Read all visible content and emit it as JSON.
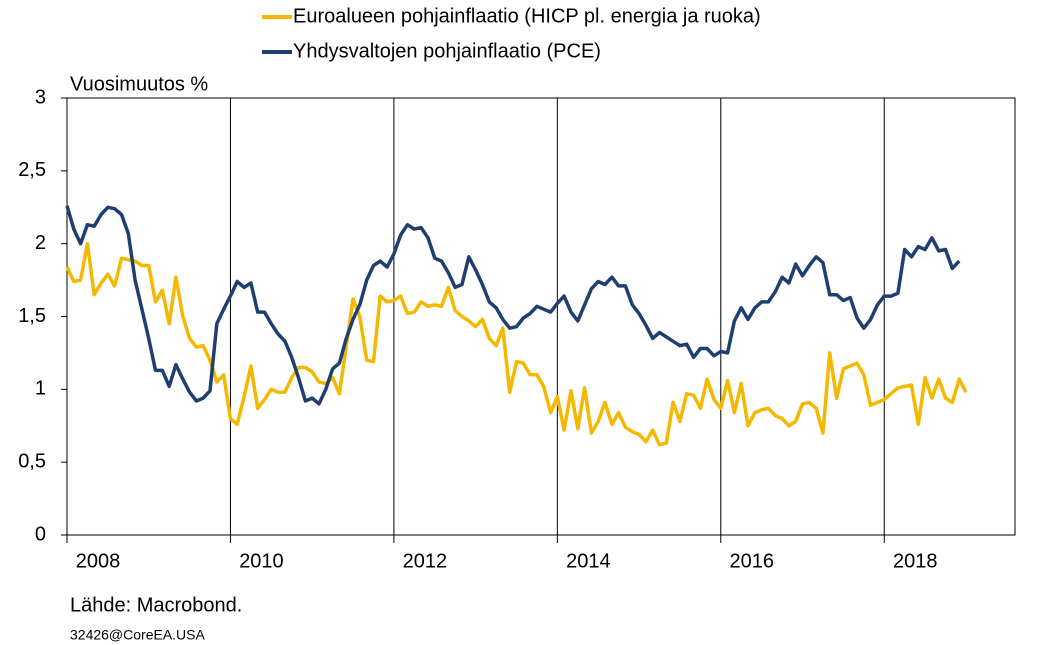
{
  "chart_data": {
    "type": "line",
    "y_label": "Vuosimuutos  %",
    "source": "Lähde:  Macrobond.",
    "footnote": "32426@CoreEA.USA",
    "x": [
      2008,
      2008.083,
      2008.167,
      2008.25,
      2008.333,
      2008.417,
      2008.5,
      2008.583,
      2008.667,
      2008.75,
      2008.833,
      2008.917,
      2009,
      2009.083,
      2009.167,
      2009.25,
      2009.333,
      2009.417,
      2009.5,
      2009.583,
      2009.667,
      2009.75,
      2009.833,
      2009.917,
      2010,
      2010.083,
      2010.167,
      2010.25,
      2010.333,
      2010.417,
      2010.5,
      2010.583,
      2010.667,
      2010.75,
      2010.833,
      2010.917,
      2011,
      2011.083,
      2011.167,
      2011.25,
      2011.333,
      2011.417,
      2011.5,
      2011.583,
      2011.667,
      2011.75,
      2011.833,
      2011.917,
      2012,
      2012.083,
      2012.167,
      2012.25,
      2012.333,
      2012.417,
      2012.5,
      2012.583,
      2012.667,
      2012.75,
      2012.833,
      2012.917,
      2013,
      2013.083,
      2013.167,
      2013.25,
      2013.333,
      2013.417,
      2013.5,
      2013.583,
      2013.667,
      2013.75,
      2013.833,
      2013.917,
      2014,
      2014.083,
      2014.167,
      2014.25,
      2014.333,
      2014.417,
      2014.5,
      2014.583,
      2014.667,
      2014.75,
      2014.833,
      2014.917,
      2015,
      2015.083,
      2015.167,
      2015.25,
      2015.333,
      2015.417,
      2015.5,
      2015.583,
      2015.667,
      2015.75,
      2015.833,
      2015.917,
      2016,
      2016.083,
      2016.167,
      2016.25,
      2016.333,
      2016.417,
      2016.5,
      2016.583,
      2016.667,
      2016.75,
      2016.833,
      2016.917,
      2017,
      2017.083,
      2017.167,
      2017.25,
      2017.333,
      2017.417,
      2017.5,
      2017.583,
      2017.667,
      2017.75,
      2017.833,
      2017.917,
      2018,
      2018.083,
      2018.167,
      2018.25,
      2018.333,
      2018.417,
      2018.5,
      2018.583,
      2018.667,
      2018.75,
      2018.833,
      2018.917,
      2019
    ],
    "series": [
      {
        "name": "Euroalueen pohjainflaatio (HICP pl. energia ja ruoka)",
        "color": "#f5b800",
        "values": [
          1.84,
          1.74,
          1.75,
          2.0,
          1.65,
          1.73,
          1.79,
          1.71,
          1.9,
          1.89,
          1.88,
          1.85,
          1.85,
          1.6,
          1.68,
          1.45,
          1.77,
          1.5,
          1.35,
          1.29,
          1.3,
          1.2,
          1.05,
          1.1,
          0.8,
          0.76,
          0.95,
          1.16,
          0.87,
          0.93,
          1.0,
          0.98,
          0.98,
          1.08,
          1.15,
          1.15,
          1.12,
          1.05,
          1.04,
          1.08,
          0.97,
          1.3,
          1.62,
          1.5,
          1.2,
          1.19,
          1.64,
          1.6,
          1.61,
          1.64,
          1.52,
          1.53,
          1.6,
          1.57,
          1.58,
          1.57,
          1.7,
          1.54,
          1.5,
          1.47,
          1.43,
          1.48,
          1.35,
          1.3,
          1.42,
          0.98,
          1.19,
          1.18,
          1.1,
          1.1,
          1.02,
          0.84,
          0.95,
          0.72,
          0.99,
          0.73,
          1.01,
          0.7,
          0.78,
          0.91,
          0.76,
          0.84,
          0.74,
          0.71,
          0.69,
          0.64,
          0.72,
          0.62,
          0.63,
          0.91,
          0.78,
          0.97,
          0.96,
          0.87,
          1.07,
          0.93,
          0.87,
          1.06,
          0.84,
          1.04,
          0.75,
          0.84,
          0.86,
          0.87,
          0.82,
          0.8,
          0.75,
          0.78,
          0.9,
          0.91,
          0.87,
          0.7,
          1.25,
          0.94,
          1.14,
          1.16,
          1.18,
          1.1,
          0.89,
          0.91,
          0.93,
          0.97,
          1.01,
          1.02,
          1.03,
          0.76,
          1.08,
          0.94,
          1.07,
          0.94,
          0.91,
          1.07,
          0.98
        ]
      },
      {
        "name": "Yhdysvaltojen pohjainflaatio (PCE)",
        "color": "#1f3f73",
        "values": [
          2.26,
          2.1,
          2.0,
          2.13,
          2.12,
          2.2,
          2.25,
          2.24,
          2.2,
          2.07,
          1.75,
          1.55,
          1.35,
          1.13,
          1.13,
          1.02,
          1.17,
          1.07,
          0.98,
          0.92,
          0.94,
          0.99,
          1.45,
          1.55,
          1.64,
          1.74,
          1.7,
          1.73,
          1.53,
          1.53,
          1.45,
          1.38,
          1.33,
          1.22,
          1.08,
          0.92,
          0.94,
          0.9,
          1.0,
          1.14,
          1.18,
          1.35,
          1.48,
          1.58,
          1.75,
          1.85,
          1.88,
          1.84,
          1.93,
          2.06,
          2.13,
          2.1,
          2.11,
          2.04,
          1.9,
          1.88,
          1.8,
          1.7,
          1.72,
          1.91,
          1.82,
          1.72,
          1.6,
          1.56,
          1.48,
          1.42,
          1.43,
          1.49,
          1.52,
          1.57,
          1.55,
          1.53,
          1.59,
          1.64,
          1.53,
          1.47,
          1.58,
          1.69,
          1.74,
          1.72,
          1.77,
          1.71,
          1.71,
          1.58,
          1.52,
          1.44,
          1.35,
          1.39,
          1.36,
          1.33,
          1.3,
          1.31,
          1.22,
          1.28,
          1.28,
          1.23,
          1.26,
          1.25,
          1.47,
          1.56,
          1.48,
          1.56,
          1.6,
          1.6,
          1.67,
          1.77,
          1.73,
          1.86,
          1.78,
          1.85,
          1.91,
          1.87,
          1.65,
          1.65,
          1.61,
          1.63,
          1.49,
          1.42,
          1.48,
          1.58,
          1.64,
          1.64,
          1.66,
          1.96,
          1.91,
          1.98,
          1.96,
          2.04,
          1.95,
          1.96,
          1.83,
          1.88,
          null
        ]
      }
    ],
    "xlim": [
      2008,
      2019.6
    ],
    "xticks": [
      2008,
      2010,
      2012,
      2014,
      2016,
      2018
    ],
    "ylim": [
      0,
      3
    ],
    "yticks": [
      0,
      {
        "value": 0.5,
        "label": "0,5"
      },
      1,
      {
        "value": 1.5,
        "label": "1,5"
      },
      2,
      {
        "value": 2.5,
        "label": "2,5"
      },
      3
    ],
    "grid": "x"
  }
}
